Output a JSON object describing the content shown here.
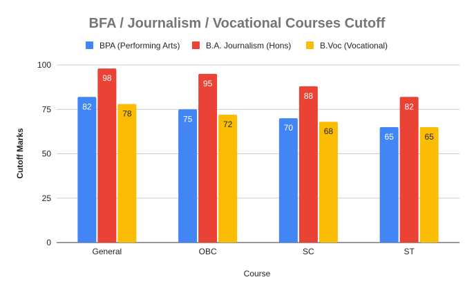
{
  "chart_data": {
    "type": "bar",
    "title": "BFA / Journalism / Vocational Courses Cutoff",
    "xlabel": "Course",
    "ylabel": "Cutoff Marks",
    "categories": [
      "General",
      "OBC",
      "SC",
      "ST"
    ],
    "series": [
      {
        "name": "BPA (Performing Arts)",
        "color": "#4285F4",
        "label_color": "#ffffff",
        "values": [
          82,
          75,
          70,
          65
        ]
      },
      {
        "name": "B.A. Journalism (Hons)",
        "color": "#EA4335",
        "label_color": "#ffffff",
        "values": [
          98,
          95,
          88,
          82
        ]
      },
      {
        "name": "B.Voc (Vocational)",
        "color": "#FBBC04",
        "label_color": "#222222",
        "values": [
          78,
          72,
          68,
          65
        ]
      }
    ],
    "ylim": [
      0,
      100
    ],
    "yticks": [
      0,
      25,
      50,
      75,
      100
    ],
    "grid": true,
    "legend_position": "top"
  }
}
